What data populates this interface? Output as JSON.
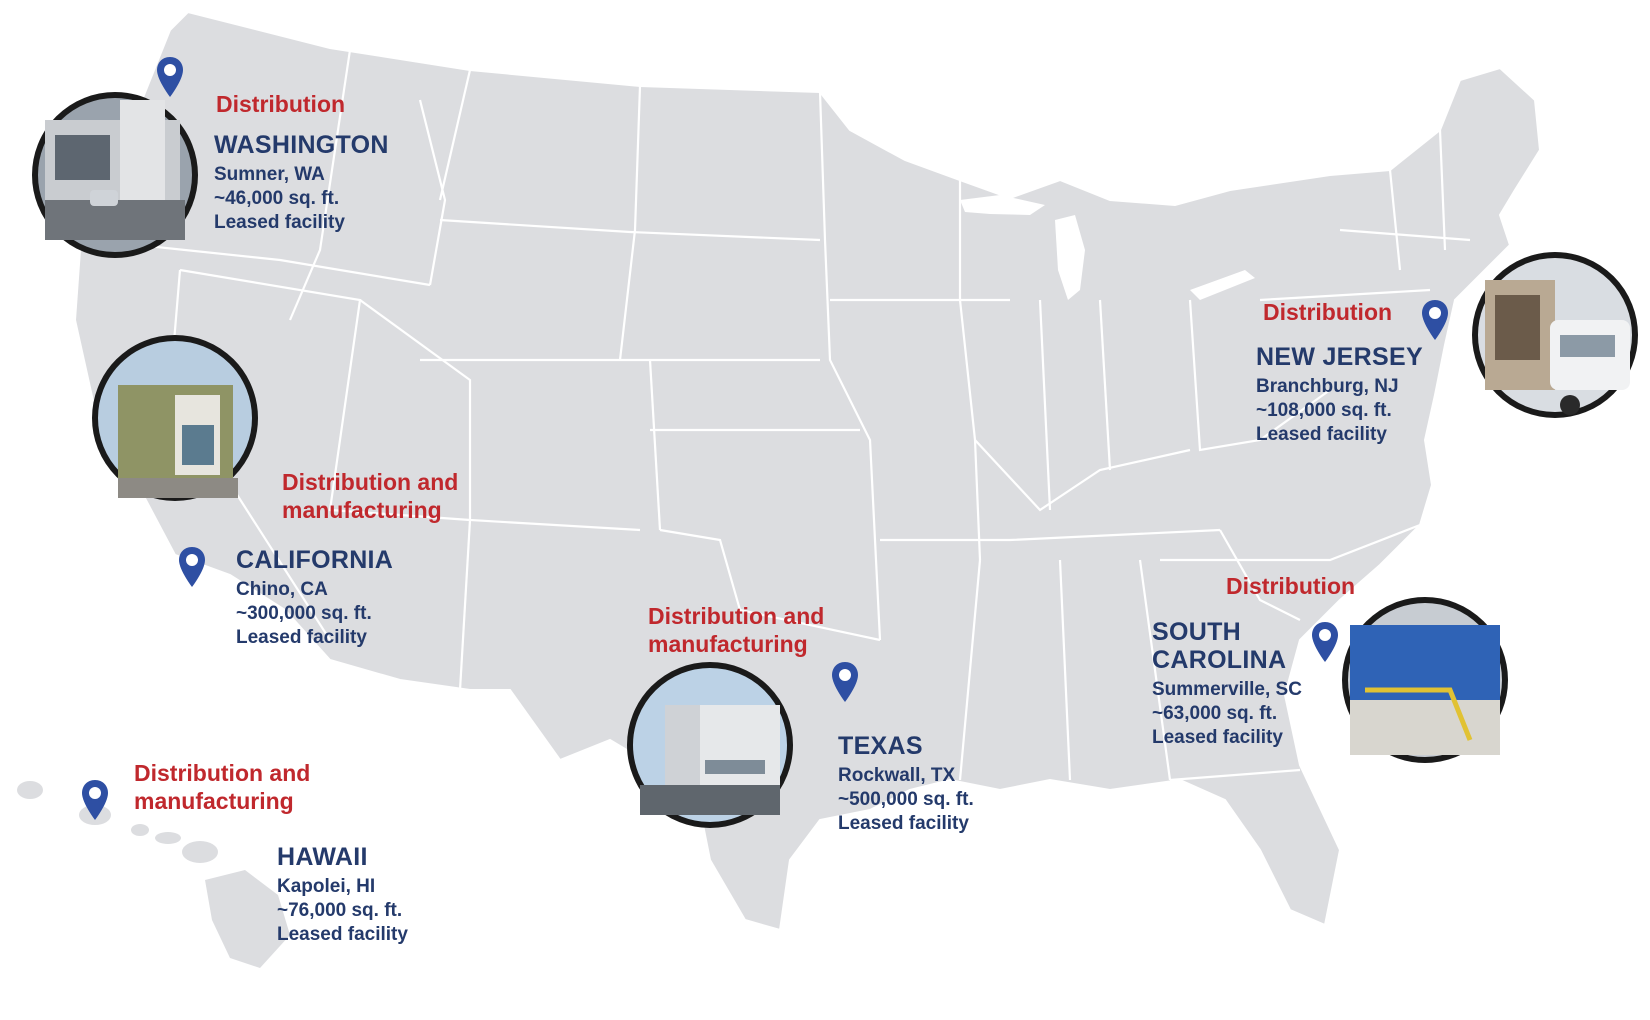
{
  "map": {
    "land_color": "#dcdde0",
    "border_color": "#ffffff",
    "category_color": "#c0282d",
    "text_color": "#243a6b",
    "pin_color": "#2e4fa3",
    "pin_icon": "map-pin-icon"
  },
  "locations": [
    {
      "id": "washington",
      "category": "Distribution",
      "state": "WASHINGTON",
      "city": "Sumner, WA",
      "size": "~46,000 sq. ft.",
      "tenure": "Leased facility"
    },
    {
      "id": "california",
      "category": "Distribution and\nmanufacturing",
      "state": "CALIFORNIA",
      "city": "Chino, CA",
      "size": "~300,000 sq. ft.",
      "tenure": "Leased facility"
    },
    {
      "id": "texas",
      "category": "Distribution and\nmanufacturing",
      "state": "TEXAS",
      "city": "Rockwall, TX",
      "size": "~500,000 sq. ft.",
      "tenure": "Leased facility"
    },
    {
      "id": "hawaii",
      "category": "Distribution and\nmanufacturing",
      "state": "HAWAII",
      "city": "Kapolei, HI",
      "size": "~76,000 sq. ft.",
      "tenure": "Leased facility"
    },
    {
      "id": "new-jersey",
      "category": "Distribution",
      "state": "NEW JERSEY",
      "city": "Branchburg, NJ",
      "size": "~108,000 sq. ft.",
      "tenure": "Leased facility"
    },
    {
      "id": "south-carolina",
      "category": "Distribution",
      "state": "SOUTH\nCAROLINA",
      "city": "Summerville, SC",
      "size": "~63,000 sq. ft.",
      "tenure": "Leased facility"
    }
  ]
}
